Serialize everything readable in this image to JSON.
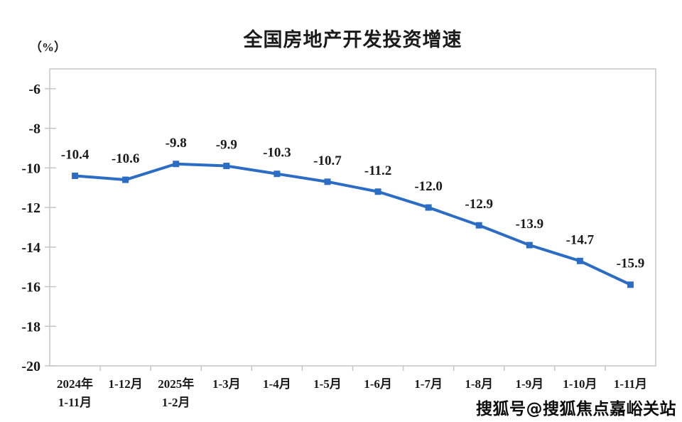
{
  "chart_data": {
    "type": "line",
    "title": "全国房地产开发投资增速",
    "unit_label": "（%）",
    "categories": [
      [
        "2024年",
        "1-11月"
      ],
      [
        "1-12月"
      ],
      [
        "2025年",
        "1-2月"
      ],
      [
        "1-3月"
      ],
      [
        "1-4月"
      ],
      [
        "1-5月"
      ],
      [
        "1-6月"
      ],
      [
        "1-7月"
      ],
      [
        "1-8月"
      ],
      [
        "1-9月"
      ],
      [
        "1-10月"
      ],
      [
        "1-11月"
      ]
    ],
    "values": [
      -10.4,
      -10.6,
      -9.8,
      -9.9,
      -10.3,
      -10.7,
      -11.2,
      -12.0,
      -12.9,
      -13.9,
      -14.7,
      -15.9
    ],
    "data_labels": [
      "-10.4",
      "-10.6",
      "-9.8",
      "-9.9",
      "-10.3",
      "-10.7",
      "-11.2",
      "-12.0",
      "-12.9",
      "-13.9",
      "-14.7",
      "-15.9"
    ],
    "ylim": [
      -20,
      -5
    ],
    "yticks": [
      -6,
      -8,
      -10,
      -12,
      -14,
      -16,
      -18,
      -20
    ],
    "grid": false,
    "legend_position": "none",
    "line_color": "#2B6CC5",
    "marker_color": "#2B6CC5",
    "axis_color": "#C2C2C2",
    "text_color": "#1A1A1A"
  },
  "watermark": {
    "text": "搜狐号@搜狐焦点嘉峪关站"
  }
}
